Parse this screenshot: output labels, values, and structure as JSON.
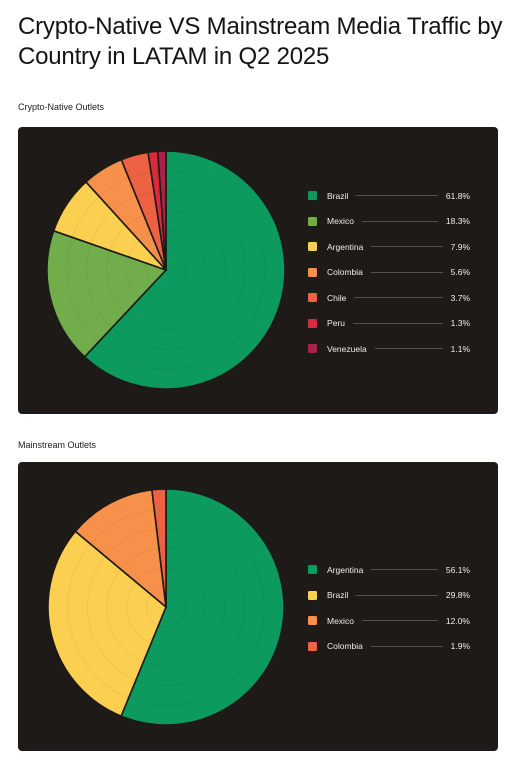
{
  "title": "Crypto-Native VS Mainstream Media Traffic by Country in LATAM in Q2 2025",
  "chart_data": [
    {
      "type": "pie",
      "title": "Crypto-Native Outlets",
      "legend_position": "right",
      "slices": [
        {
          "label": "Brazil",
          "value": 61.8,
          "display": "61.8%",
          "color": "#0c9a5e"
        },
        {
          "label": "Mexico",
          "value": 18.3,
          "display": "18.3%",
          "color": "#72ad4c"
        },
        {
          "label": "Argentina",
          "value": 7.9,
          "display": "7.9%",
          "color": "#fbcf4f"
        },
        {
          "label": "Colombia",
          "value": 5.6,
          "display": "5.6%",
          "color": "#f7904a"
        },
        {
          "label": "Chile",
          "value": 3.7,
          "display": "3.7%",
          "color": "#ec6242"
        },
        {
          "label": "Peru",
          "value": 1.3,
          "display": "1.3%",
          "color": "#d92b3c"
        },
        {
          "label": "Venezuela",
          "value": 1.1,
          "display": "1.1%",
          "color": "#a7234a"
        }
      ]
    },
    {
      "type": "pie",
      "title": "Mainstream Outlets",
      "legend_position": "right",
      "slices": [
        {
          "label": "Argentina",
          "value": 56.1,
          "display": "56.1%",
          "color": "#0c9a5e"
        },
        {
          "label": "Brazil",
          "value": 29.8,
          "display": "29.8%",
          "color": "#fbcf4f"
        },
        {
          "label": "Mexico",
          "value": 12.0,
          "display": "12.0%",
          "color": "#f7904a"
        },
        {
          "label": "Colombia",
          "value": 1.9,
          "display": "1.9%",
          "color": "#ec6242"
        }
      ]
    }
  ]
}
